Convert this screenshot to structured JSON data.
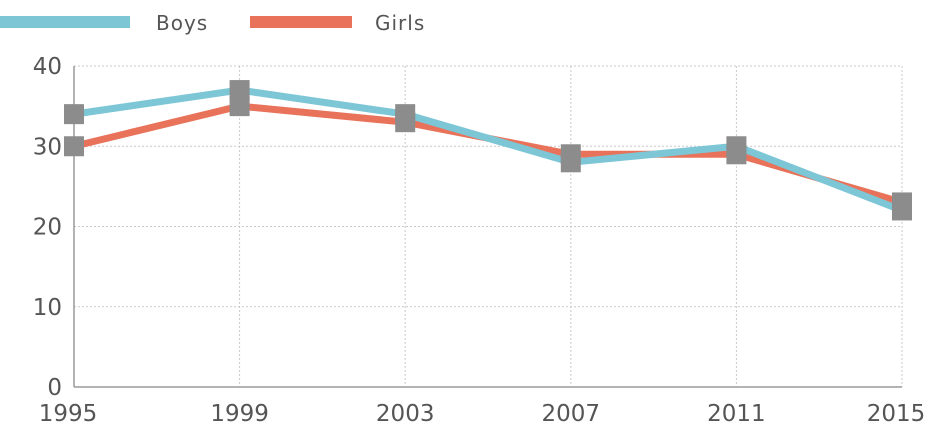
{
  "chart_data": {
    "type": "line",
    "x": [
      "1995",
      "1999",
      "2003",
      "2007",
      "2011",
      "2015"
    ],
    "series": [
      {
        "name": "Boys",
        "values": [
          34,
          37,
          34,
          28,
          30,
          22
        ],
        "color": "#7CC6D6"
      },
      {
        "name": "Girls",
        "values": [
          30,
          35,
          33,
          29,
          29,
          23
        ],
        "color": "#E8735A"
      }
    ],
    "marker_color": "#8C8C8C",
    "ylim": [
      0,
      40
    ],
    "yticks": [
      "0",
      "10",
      "20",
      "30",
      "40"
    ],
    "grid": true,
    "legend_position": "top-left"
  }
}
